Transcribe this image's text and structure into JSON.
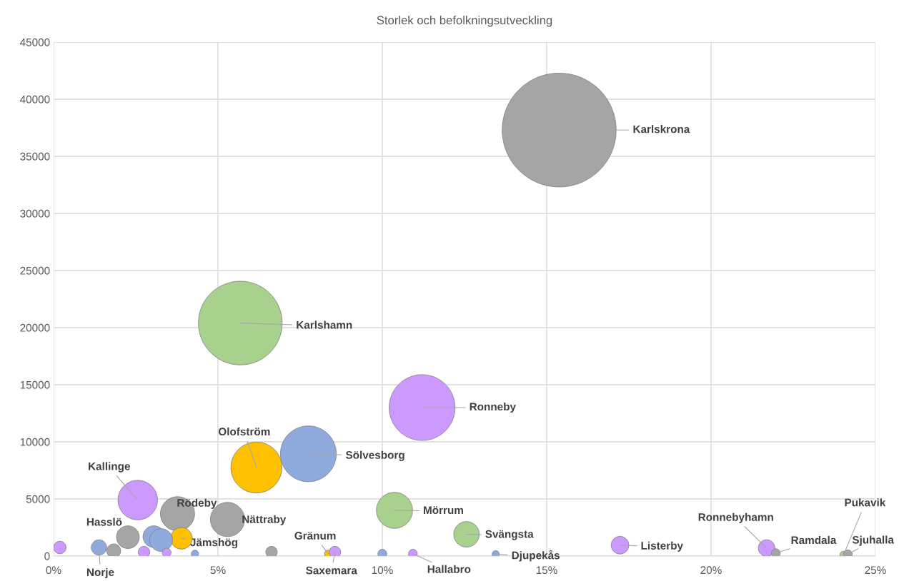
{
  "chart_data": {
    "type": "bubble",
    "title": "Storlek och befolkningsutveckling",
    "x": [
      15.38,
      5.68,
      11.21,
      7.75,
      6.17,
      2.56,
      3.77,
      5.29,
      10.37,
      12.56,
      17.23,
      2.26,
      3.89,
      3.05,
      3.27,
      1.38,
      0.19,
      1.83,
      2.75,
      3.44,
      4.3,
      6.63,
      8.35,
      8.56,
      10.0,
      10.93,
      13.45,
      21.69,
      21.97,
      24.03,
      24.16
    ],
    "values": [
      37300,
      20400,
      13000,
      8950,
      7750,
      4900,
      3700,
      3200,
      4000,
      1900,
      950,
      1650,
      1550,
      1700,
      1400,
      750,
      750,
      450,
      350,
      300,
      200,
      350,
      200,
      350,
      200,
      200,
      150,
      700,
      250,
      100,
      150
    ],
    "sizes": [
      1,
      0.54,
      0.334,
      0.24,
      0.2,
      0.12,
      0.09,
      0.09,
      0.1,
      0.05,
      0.024,
      0.04,
      0.036,
      0.036,
      0.04,
      0.018,
      0.012,
      0.015,
      0.01,
      0.006,
      0.004,
      0.01,
      0.004,
      0.01,
      0.006,
      0.006,
      0.004,
      0.021,
      0.006,
      0.004,
      0.006
    ],
    "colors": [
      "#a5a5a5",
      "#a9d18e",
      "#cc99ff",
      "#8faadc",
      "#ffc000",
      "#cc99ff",
      "#a5a5a5",
      "#a5a5a5",
      "#a9d18e",
      "#a9d18e",
      "#cc99ff",
      "#a5a5a5",
      "#ffc000",
      "#8faadc",
      "#8faadc",
      "#8faadc",
      "#cc99ff",
      "#a5a5a5",
      "#cc99ff",
      "#cc99ff",
      "#8faadc",
      "#a5a5a5",
      "#ffc000",
      "#cc99ff",
      "#8faadc",
      "#cc99ff",
      "#8faadc",
      "#cc99ff",
      "#a5a5a5",
      "#a9d18e",
      "#a5a5a5"
    ],
    "value_labels": [
      "Karlskrona",
      "Karlshamn",
      "Ronneby",
      "Sölvesborg",
      "Olofström",
      "Kallinge",
      "Rödeby",
      "Nättraby",
      "Mörrum",
      "Svängsta",
      "Listerby",
      "Hasslö",
      "Jämshög",
      null,
      null,
      "Norje",
      null,
      null,
      null,
      null,
      null,
      null,
      "Gränum",
      "Saxemara",
      null,
      "Hallabro",
      "Djupekås",
      "Ronnebyhamn",
      "Ramdala",
      "Pukavik",
      "Sjuhalla"
    ],
    "xlim": [
      0,
      25
    ],
    "xticks": [
      {
        "value": 0,
        "label": "0%"
      },
      {
        "value": 5,
        "label": "5%"
      },
      {
        "value": 10,
        "label": "10%"
      },
      {
        "value": 15,
        "label": "15%"
      },
      {
        "value": 20,
        "label": "20%"
      },
      {
        "value": 25,
        "label": "25%"
      }
    ],
    "ylim": [
      0,
      45000
    ],
    "yticks": [
      0,
      5000,
      10000,
      15000,
      20000,
      25000,
      30000,
      35000,
      40000,
      45000
    ],
    "grid": true
  }
}
